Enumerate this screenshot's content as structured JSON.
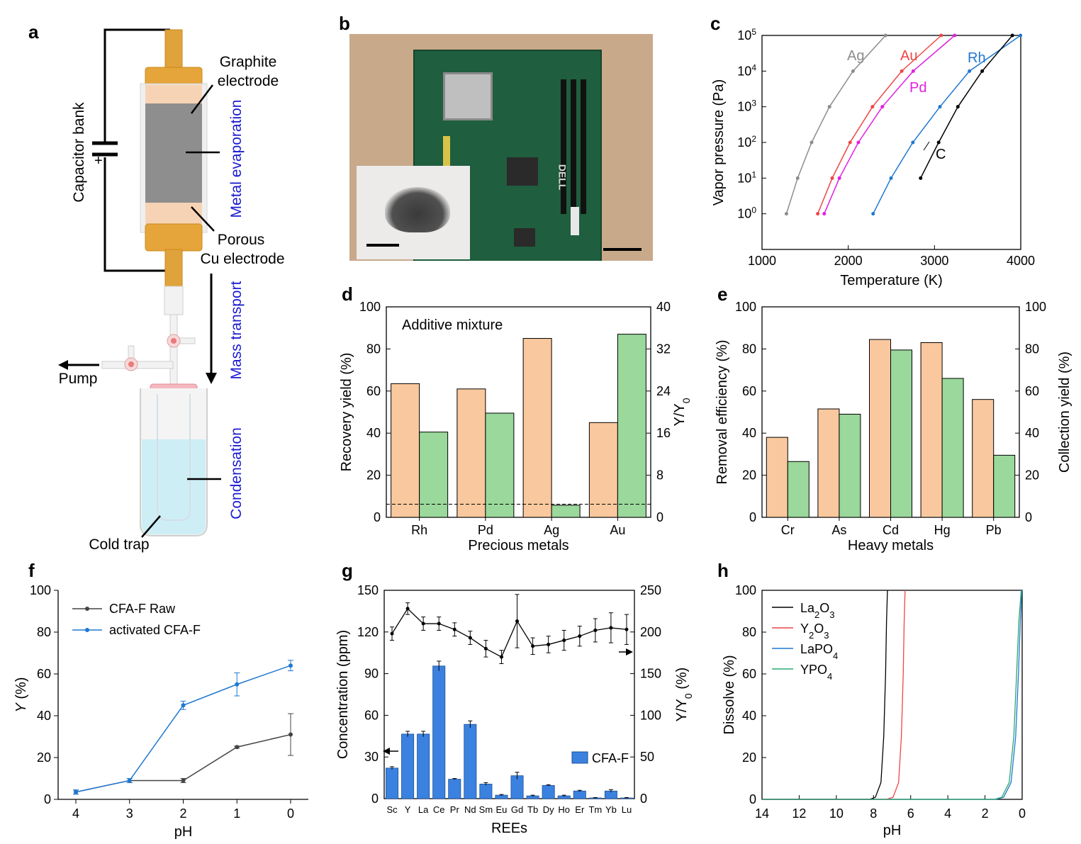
{
  "panels": {
    "a": "a",
    "b": "b",
    "c": "c",
    "d": "d",
    "e": "e",
    "f": "f",
    "g": "g",
    "h": "h"
  },
  "schematic": {
    "capacitor": "Capacitor bank",
    "capacitor_sign": "+",
    "graphite": [
      "Graphite",
      "electrode"
    ],
    "porous": [
      "Porous",
      "Cu electrode"
    ],
    "metal_evaporation": "Metal evaporation",
    "mass_transport": "Mass transport",
    "condensation": "Condensation",
    "pump": "Pump",
    "cold_trap": "Cold trap",
    "blue_text_color": "#1a1ad0"
  },
  "photo": {
    "brand": "DELL"
  },
  "colors": {
    "orange": "#f9c89e",
    "green": "#9ad89b",
    "blue": "#1f78d1",
    "blue_bar": "#3b82e0",
    "grey": "#8c8c8c",
    "red": "#f04545",
    "magenta": "#e020e0",
    "black": "#000000"
  },
  "chart_data": [
    {
      "id": "c",
      "type": "line",
      "xlabel": "Temperature (K)",
      "ylabel": "Vapor pressure (Pa)",
      "xlim": [
        1000,
        4000
      ],
      "xticks": [
        "1000",
        "2000",
        "3000",
        "4000"
      ],
      "ylim_log10": [
        -1,
        5
      ],
      "yscale": "log",
      "series": [
        {
          "name": "Ag",
          "color": "#8c8c8c",
          "x": [
            1283,
            1413,
            1575,
            1782,
            2055,
            2433
          ],
          "y": [
            1,
            10,
            100,
            1000,
            10000,
            100000
          ]
        },
        {
          "name": "Au",
          "color": "#f04545",
          "x": [
            1646,
            1814,
            2021,
            2281,
            2620,
            3078
          ],
          "y": [
            1,
            10,
            100,
            1000,
            10000,
            100000
          ]
        },
        {
          "name": "Pd",
          "color": "#e020e0",
          "x": [
            1721,
            1897,
            2117,
            2395,
            2753,
            3234
          ],
          "y": [
            1,
            10,
            100,
            1000,
            10000,
            100000
          ]
        },
        {
          "name": "Rh",
          "color": "#1f78d1",
          "x": [
            2288,
            2496,
            2749,
            3063,
            3405,
            3997
          ],
          "y": [
            1,
            10,
            100,
            1000,
            10000,
            100000
          ]
        },
        {
          "name": "C",
          "color": "#000000",
          "x": [
            2839,
            3048,
            3271,
            3553,
            3903
          ],
          "y": [
            10,
            100,
            1000,
            10000,
            100000
          ]
        }
      ]
    },
    {
      "id": "d",
      "type": "bar",
      "annotation": "Additive mixture",
      "categories": [
        "Rh",
        "Pd",
        "Ag",
        "Au"
      ],
      "xlabel": "Precious metals",
      "ylabel": "Recovery yield (%)",
      "ylim": [
        0,
        100
      ],
      "yticks": [
        "0",
        "20",
        "40",
        "60",
        "80",
        "100"
      ],
      "ylabel_right": "Y/Y",
      "ylabel_right_sub": "0",
      "ylim_right": [
        0,
        40
      ],
      "yticks_right": [
        "0",
        "8",
        "16",
        "24",
        "32",
        "40"
      ],
      "series": [
        {
          "name": "Recovery yield",
          "axis": "left",
          "values": [
            63.5,
            61,
            85,
            45
          ]
        },
        {
          "name": "Y/Y0",
          "axis": "right",
          "values": [
            16.2,
            19.8,
            2.3,
            34.8
          ]
        }
      ],
      "reference_line_right": 2.5
    },
    {
      "id": "e",
      "type": "bar",
      "categories": [
        "Cr",
        "As",
        "Cd",
        "Hg",
        "Pb"
      ],
      "xlabel": "Heavy metals",
      "ylabel": "Removal efficiency (%)",
      "ylim": [
        0,
        100
      ],
      "yticks": [
        "0",
        "20",
        "40",
        "60",
        "80",
        "100"
      ],
      "ylabel_right": "Collection yield (%)",
      "ylim_right": [
        0,
        100
      ],
      "yticks_right": [
        "0",
        "20",
        "40",
        "60",
        "80",
        "100"
      ],
      "series": [
        {
          "name": "Removal efficiency",
          "values": [
            38,
            51.5,
            84.5,
            83,
            56
          ]
        },
        {
          "name": "Collection yield",
          "values": [
            26.5,
            49,
            79.5,
            66,
            29.5
          ]
        }
      ]
    },
    {
      "id": "f",
      "type": "line",
      "xlabel": "pH",
      "ylabel_italic": "Y",
      "ylabel_unit": " (%)",
      "x": [
        4,
        3,
        2,
        1,
        0
      ],
      "xticks": [
        "4",
        "3",
        "2",
        "1",
        "0"
      ],
      "ylim": [
        0,
        100
      ],
      "yticks": [
        "0",
        "20",
        "40",
        "60",
        "80",
        "100"
      ],
      "series": [
        {
          "name": "CFA-F Raw",
          "color": "#444444",
          "values": [
            3.5,
            9,
            9,
            25,
            31
          ],
          "errors": [
            1,
            1,
            1,
            0.5,
            10
          ]
        },
        {
          "name": "activated CFA-F",
          "color": "#1f78d1",
          "values": [
            3.5,
            9,
            45,
            55,
            64
          ],
          "errors": [
            1,
            1,
            2,
            5.5,
            2.5
          ]
        }
      ]
    },
    {
      "id": "g",
      "type": "bar+line",
      "categories": [
        "Sc",
        "Y",
        "La",
        "Ce",
        "Pr",
        "Nd",
        "Sm",
        "Eu",
        "Gd",
        "Tb",
        "Dy",
        "Ho",
        "Er",
        "Tm",
        "Yb",
        "Lu"
      ],
      "xlabel": "REEs",
      "ylabel": "Concentration (ppm)",
      "ylim": [
        0,
        150
      ],
      "yticks": [
        "0",
        "30",
        "60",
        "90",
        "120",
        "150"
      ],
      "ylabel_right": "Y/Y",
      "ylabel_right_sub": "0",
      "ylabel_right_unit": " (%)",
      "ylim_right": [
        0,
        250
      ],
      "yticks_right": [
        "0",
        "50",
        "100",
        "150",
        "200",
        "250"
      ],
      "bar_series": {
        "name": "CFA-F",
        "values": [
          22,
          46.5,
          46.5,
          95.5,
          14,
          53.5,
          10.5,
          2.5,
          16.5,
          2,
          9.5,
          2,
          5.5,
          0.5,
          5.5,
          0.5
        ],
        "errors": [
          1,
          2,
          2,
          3.5,
          0.5,
          2.5,
          1,
          0.5,
          2.5,
          0.5,
          0.5,
          0.5,
          0.5,
          0.3,
          1,
          0.3
        ]
      },
      "line_series": {
        "name": "Y/Y0",
        "values": [
          198,
          228,
          210,
          210,
          203,
          193,
          180,
          170,
          213,
          183,
          185,
          190,
          195,
          202,
          205,
          203
        ],
        "errors": [
          8,
          7,
          8,
          8,
          8,
          8,
          10,
          8,
          32,
          10,
          10,
          12,
          12,
          14,
          18,
          18
        ]
      }
    },
    {
      "id": "h",
      "type": "line",
      "xlabel": "pH",
      "ylabel": "Dissolve (%)",
      "xlim": [
        14,
        0
      ],
      "xticks": [
        "14",
        "12",
        "10",
        "8",
        "6",
        "4",
        "2",
        "0"
      ],
      "ylim": [
        0,
        100
      ],
      "yticks": [
        "0",
        "20",
        "40",
        "60",
        "80",
        "100"
      ],
      "series": [
        {
          "name": "La2O3",
          "label_main": "La",
          "label_sub": "2",
          "label_main2": "O",
          "label_sub2": "3",
          "color": "#000000",
          "x": [
            14,
            8.2,
            7.9,
            7.6,
            7.45,
            7.35,
            7.3,
            7.25
          ],
          "y": [
            0,
            0,
            1,
            8,
            30,
            60,
            85,
            100
          ]
        },
        {
          "name": "Y2O3",
          "label_main": "Y",
          "label_sub": "2",
          "label_main2": "O",
          "label_sub2": "3",
          "color": "#f04545",
          "x": [
            14,
            7.3,
            6.95,
            6.65,
            6.5,
            6.4,
            6.35,
            6.3
          ],
          "y": [
            0,
            0,
            1,
            8,
            30,
            60,
            85,
            100
          ]
        },
        {
          "name": "LaPO4",
          "label_main": "LaPO",
          "label_sub": "4",
          "label_main2": "",
          "label_sub2": "",
          "color": "#1f78d1",
          "x": [
            14,
            1.4,
            1.0,
            0.6,
            0.35,
            0.2,
            0.1,
            0.02
          ],
          "y": [
            0,
            0,
            1,
            8,
            30,
            60,
            85,
            100
          ]
        },
        {
          "name": "YPO4",
          "label_main": "YPO",
          "label_sub": "4",
          "label_main2": "",
          "label_sub2": "",
          "color": "#2aa870",
          "x": [
            14,
            1.5,
            1.1,
            0.7,
            0.45,
            0.3,
            0.18,
            0.05
          ],
          "y": [
            0,
            0,
            1,
            8,
            30,
            60,
            85,
            100
          ]
        }
      ]
    }
  ]
}
